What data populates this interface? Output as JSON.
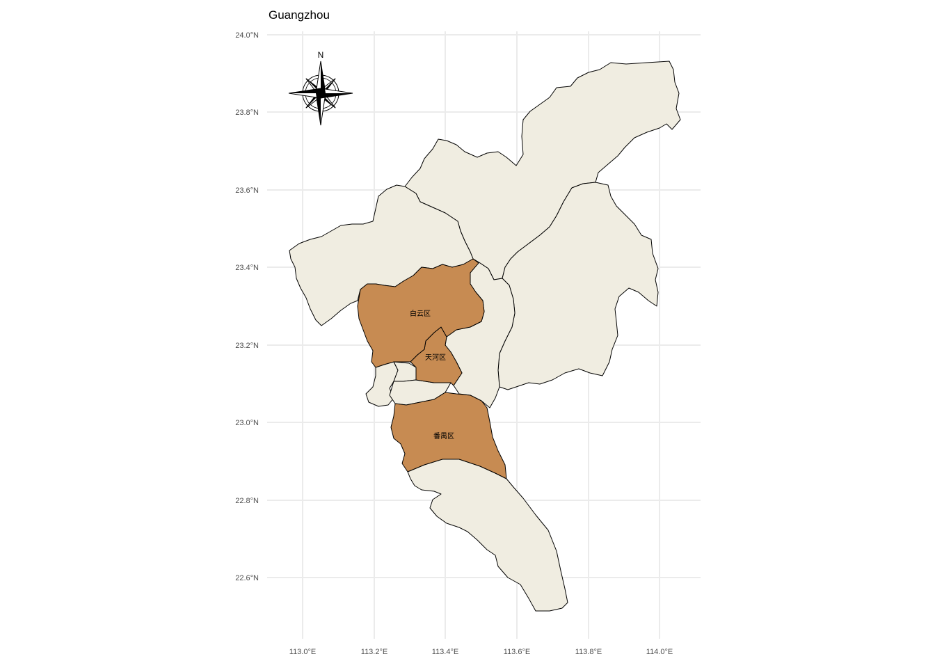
{
  "title": "Guangzhou",
  "colors": {
    "highlight": "#c78b52",
    "base": "#f0ede1",
    "border": "#000000",
    "grid": "#ebebeb"
  },
  "axes": {
    "x_ticks": [
      "113.0°E",
      "113.2°E",
      "113.4°E",
      "113.6°E",
      "113.8°E",
      "114.0°E"
    ],
    "y_ticks": [
      "24.0°N",
      "23.8°N",
      "23.6°N",
      "23.4°N",
      "23.2°N",
      "23.0°N",
      "22.8°N",
      "22.6°N"
    ]
  },
  "compass": {
    "north_label": "N",
    "icon": "compass-rose-icon"
  },
  "districts": [
    {
      "id": "baiyun",
      "label": "白云区",
      "highlighted": true
    },
    {
      "id": "tianhe",
      "label": "天河区",
      "highlighted": true
    },
    {
      "id": "panyu",
      "label": "番禺区",
      "highlighted": true
    },
    {
      "id": "huadu",
      "label": "",
      "highlighted": false
    },
    {
      "id": "conghua",
      "label": "",
      "highlighted": false
    },
    {
      "id": "zengcheng",
      "label": "",
      "highlighted": false
    },
    {
      "id": "huangpu",
      "label": "",
      "highlighted": false
    },
    {
      "id": "nansha",
      "label": "",
      "highlighted": false
    },
    {
      "id": "liwan",
      "label": "",
      "highlighted": false
    },
    {
      "id": "haizhu",
      "label": "",
      "highlighted": false
    },
    {
      "id": "yuexiu",
      "label": "",
      "highlighted": false
    }
  ]
}
